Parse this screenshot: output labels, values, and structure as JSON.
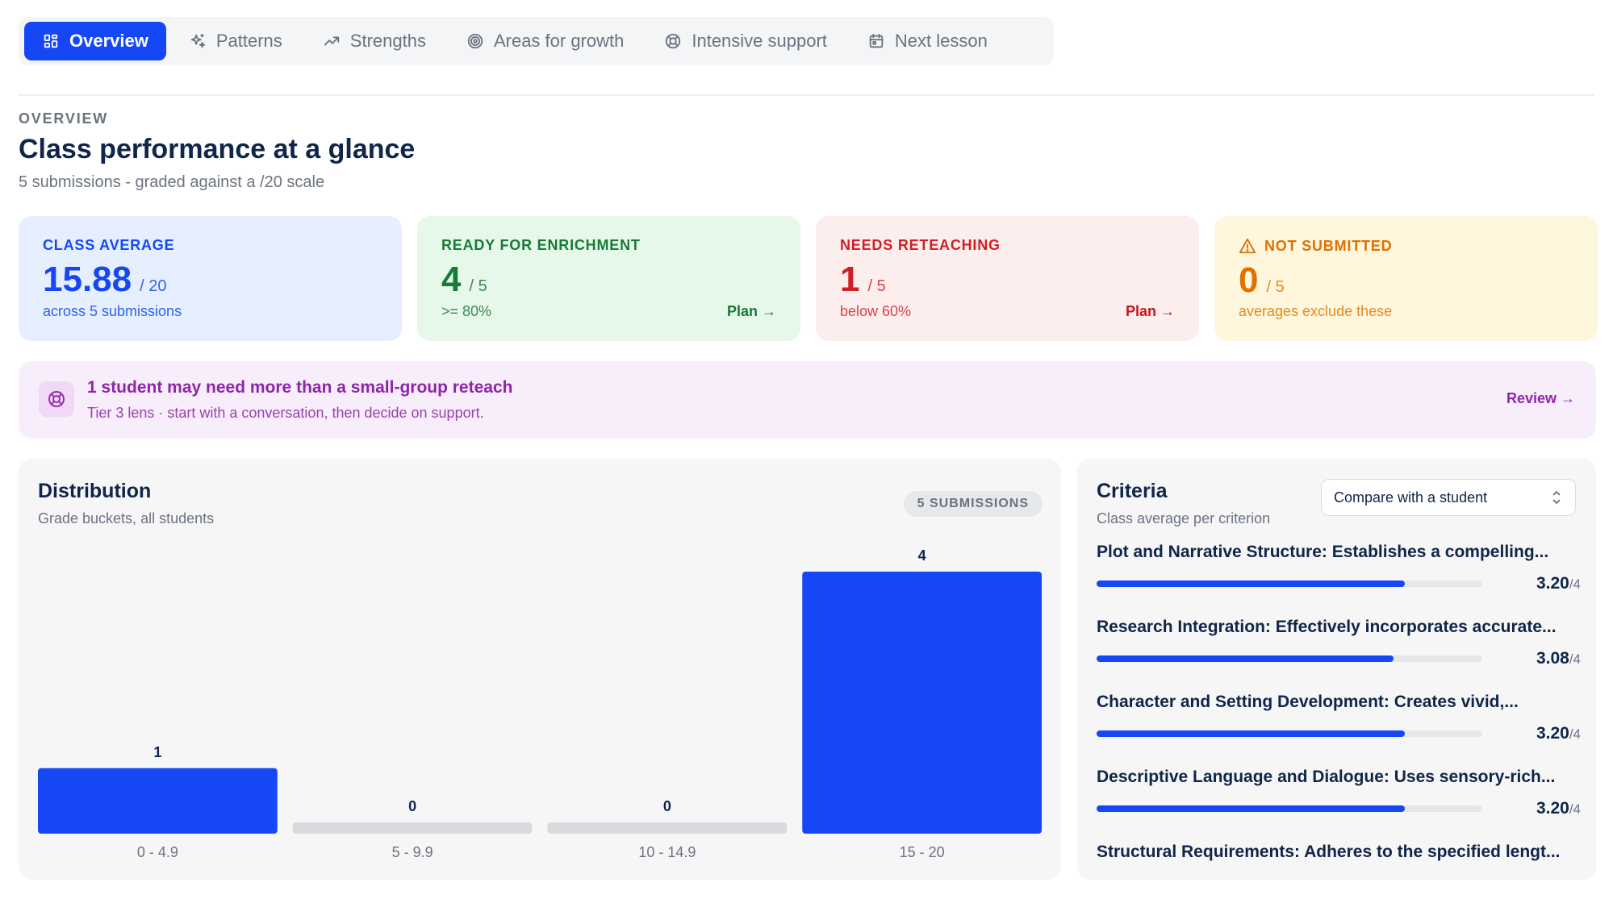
{
  "tabs": [
    {
      "label": "Overview",
      "icon": "grid-icon",
      "active": true
    },
    {
      "label": "Patterns",
      "icon": "sparkles-icon",
      "active": false
    },
    {
      "label": "Strengths",
      "icon": "trending-up-icon",
      "active": false
    },
    {
      "label": "Areas for growth",
      "icon": "target-icon",
      "active": false
    },
    {
      "label": "Intensive support",
      "icon": "lifebuoy-icon",
      "active": false
    },
    {
      "label": "Next lesson",
      "icon": "calendar-icon",
      "active": false
    }
  ],
  "header": {
    "eyebrow": "OVERVIEW",
    "title": "Class performance at a glance",
    "subtitle": "5 submissions - graded against a /20 scale"
  },
  "cards": {
    "average": {
      "label": "CLASS AVERAGE",
      "value": "15.88",
      "denom": "/ 20",
      "note": "across 5 submissions"
    },
    "enrichment": {
      "label": "READY FOR ENRICHMENT",
      "value": "4",
      "denom": "/ 5",
      "note": ">= 80%",
      "link": "Plan →"
    },
    "reteach": {
      "label": "NEEDS RETEACHING",
      "value": "1",
      "denom": "/ 5",
      "note": "below 60%",
      "link": "Plan →"
    },
    "missing": {
      "label": "NOT SUBMITTED",
      "value": "0",
      "denom": "/ 5",
      "note": "averages exclude these",
      "icon": "warning-icon"
    }
  },
  "banner": {
    "title": "1 student may need more than a small-group reteach",
    "subtitle": "Tier 3 lens · start with a conversation, then decide on support.",
    "link": "Review →",
    "icon": "lifebuoy-icon"
  },
  "distribution": {
    "title": "Distribution",
    "subtitle": "Grade buckets, all students",
    "badge": "5 SUBMISSIONS"
  },
  "chart_data": {
    "type": "bar",
    "categories": [
      "0 - 4.9",
      "5 - 9.9",
      "10 - 14.9",
      "15 - 20"
    ],
    "values": [
      1,
      0,
      0,
      4
    ],
    "title": "Distribution",
    "subtitle": "Grade buckets, all students",
    "xlabel": "",
    "ylabel": "",
    "ylim": [
      0,
      4
    ],
    "grid": false,
    "bar_color": "#1547f5",
    "empty_color": "#d9dadd"
  },
  "criteria": {
    "title": "Criteria",
    "subtitle": "Class average per criterion",
    "compare_label": "Compare with a student",
    "max": "/4",
    "items": [
      {
        "name": "Plot and Narrative Structure: Establishes a compelling...",
        "score": "3.20",
        "fraction": 0.8
      },
      {
        "name": "Research Integration: Effectively incorporates accurate...",
        "score": "3.08",
        "fraction": 0.77
      },
      {
        "name": "Character and Setting Development: Creates vivid,...",
        "score": "3.20",
        "fraction": 0.8
      },
      {
        "name": "Descriptive Language and Dialogue: Uses sensory-rich...",
        "score": "3.20",
        "fraction": 0.8
      },
      {
        "name": "Structural Requirements: Adheres to the specified lengt...",
        "score": "",
        "fraction": null
      }
    ]
  },
  "colors": {
    "accent": "#1547f5",
    "enrichment": "#177a35",
    "reteach": "#d11f24",
    "missing": "#e07100",
    "support": "#8e24aa"
  }
}
